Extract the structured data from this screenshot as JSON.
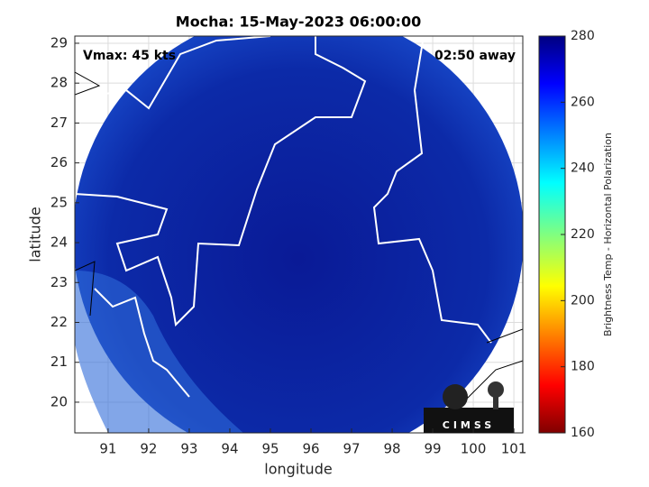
{
  "title": "Mocha: 15-May-2023 06:00:00",
  "annotations": {
    "vmax": "Vmax: 45 kts",
    "time_away": "02:50 away"
  },
  "x_axis": {
    "label": "longitude",
    "xlim": [
      90.18,
      101.22
    ],
    "ticks": [
      91,
      92,
      93,
      94,
      95,
      96,
      97,
      98,
      99,
      100,
      101
    ]
  },
  "y_axis": {
    "label": "latitude",
    "ylim": [
      19.23,
      29.18
    ],
    "ticks": [
      20,
      21,
      22,
      23,
      24,
      25,
      26,
      27,
      28,
      29
    ]
  },
  "colorbar": {
    "label": "Brightness Temp - Horizontal Polarization",
    "clim": [
      160,
      280
    ],
    "ticks": [
      160,
      180,
      200,
      220,
      240,
      260,
      280
    ]
  },
  "logo": "CIMSS"
}
